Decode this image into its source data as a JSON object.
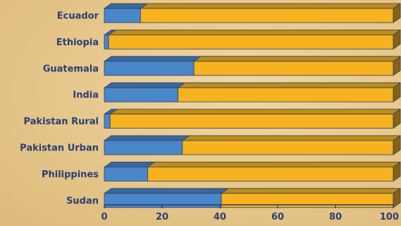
{
  "chart_data": {
    "type": "bar",
    "orientation": "horizontal",
    "stacked": true,
    "categories": [
      "Ecuador",
      "Ethiopia",
      "Guatemala",
      "India",
      "Pakistan Rural",
      "Pakistan Urban",
      "Philippines",
      "Sudan"
    ],
    "series": [
      {
        "color": "#4a87c8",
        "values": [
          12.5,
          1.5,
          31,
          25.5,
          2,
          27,
          15,
          40.5
        ]
      },
      {
        "color": "#f6b31f",
        "values": [
          87.5,
          98.5,
          69,
          74.5,
          98,
          73,
          85,
          59.5
        ]
      }
    ],
    "xlim": [
      0,
      100
    ],
    "xticks": [
      "0",
      "20",
      "40",
      "60",
      "80",
      "100"
    ],
    "title": "",
    "xlabel": "",
    "ylabel": "",
    "grid": false,
    "legend": "none"
  }
}
